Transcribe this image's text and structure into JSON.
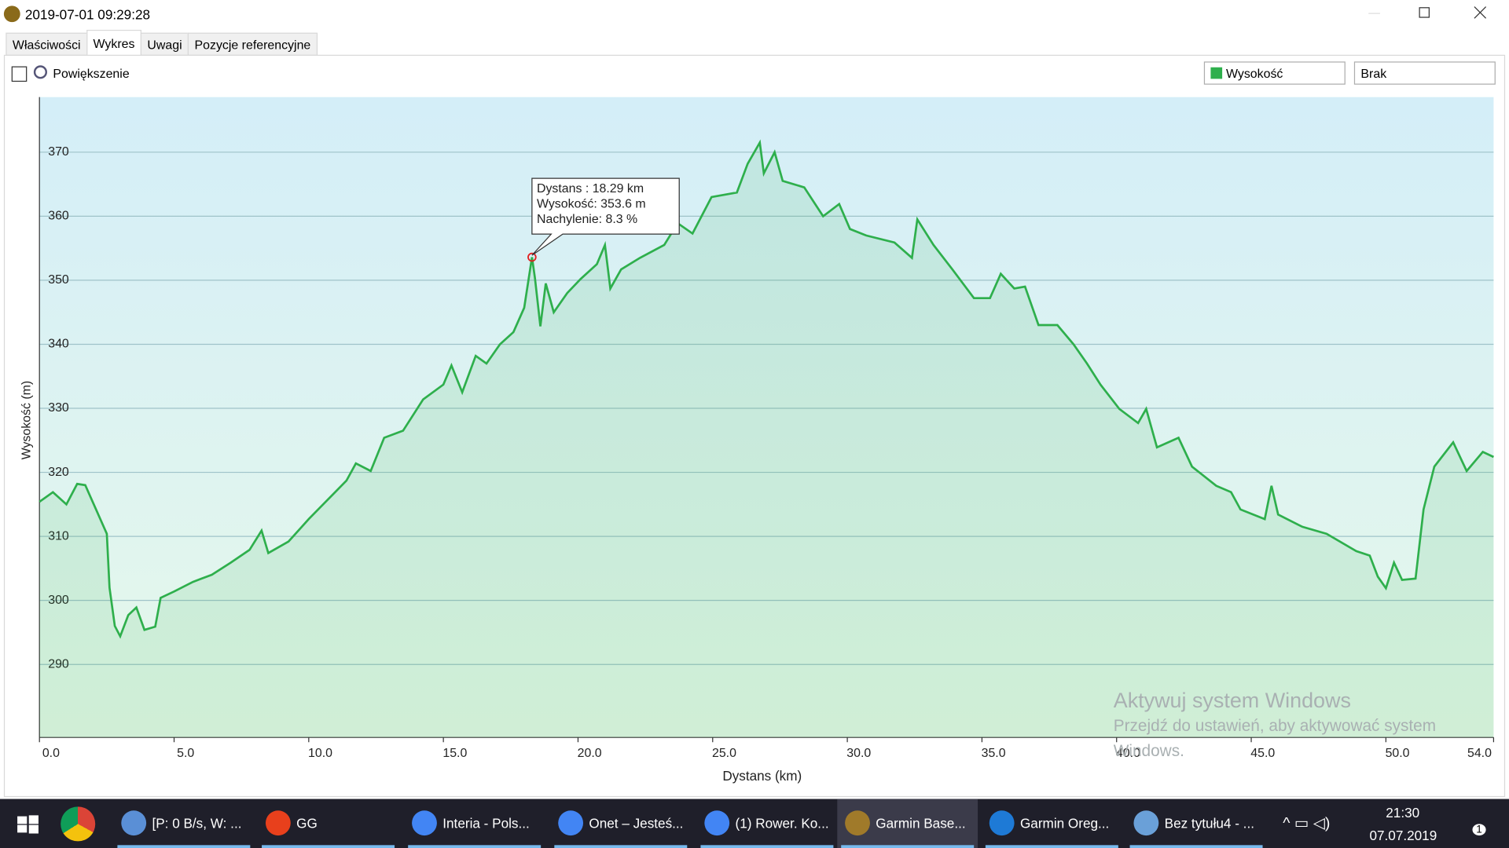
{
  "window": {
    "title": "2019-07-01 09:29:28",
    "tabs": [
      "Właściwości",
      "Wykres",
      "Uwagi",
      "Pozycje referencyjne"
    ],
    "zoom_label": "Powiększenie",
    "dropdown2": "Brak"
  },
  "chart_data": {
    "type": "line",
    "xlabel": "Dystans (km)",
    "ylabel": "Wysokość (m)",
    "x": [
      0,
      0.5,
      1,
      1.4,
      1.7,
      2.1,
      2.5,
      2.6,
      2.8,
      3.0,
      3.3,
      3.6,
      3.9,
      4.3,
      4.5,
      5,
      5.7,
      6.4,
      7.1,
      7.8,
      8.25,
      8.5,
      9.25,
      10,
      10.7,
      11.4,
      11.75,
      12.3,
      12.8,
      13.5,
      14.25,
      15,
      15.3,
      15.7,
      16.2,
      16.6,
      17.1,
      17.6,
      18,
      18.29,
      18.4,
      18.6,
      18.8,
      19.1,
      19.6,
      20.1,
      20.7,
      21,
      21.2,
      21.6,
      22.3,
      23.2,
      23.7,
      24.25,
      24.96,
      25.9,
      26.3,
      26.75,
      26.9,
      27.3,
      27.6,
      28.4,
      29.1,
      29.7,
      30.1,
      30.7,
      31.75,
      32.4,
      32.6,
      33.2,
      33.9,
      34.7,
      35.3,
      35.7,
      36.2,
      36.6,
      37.1,
      37.8,
      38.4,
      38.9,
      39.4,
      40.1,
      40.8,
      41.1,
      41.5,
      42.3,
      42.8,
      43.7,
      44.25,
      44.6,
      45.5,
      45.75,
      46,
      46.9,
      47.8,
      48.9,
      49.4,
      49.7,
      50,
      50.3,
      50.6,
      51.1,
      51.4,
      51.8,
      52.5,
      53,
      53.6,
      54
    ],
    "series": [
      {
        "name": "Wysokość",
        "color": "#2eaf4c",
        "values": [
          315.4,
          316.9,
          315,
          318.2,
          318,
          314.2,
          310.4,
          302,
          296,
          294.4,
          297.7,
          298.9,
          295.4,
          295.9,
          300.4,
          301.4,
          302.9,
          304,
          305.9,
          307.9,
          310.9,
          307.4,
          309.2,
          312.7,
          315.7,
          318.7,
          321.4,
          320.2,
          325.4,
          326.5,
          331.4,
          333.7,
          336.7,
          332.5,
          338.2,
          337,
          340,
          341.9,
          345.7,
          353.6,
          350.3,
          342.8,
          349.5,
          345,
          348,
          350.2,
          352.5,
          355.5,
          348.7,
          351.7,
          353.5,
          355.5,
          358.9,
          357.3,
          363,
          363.7,
          368.2,
          371.5,
          366.7,
          370,
          365.5,
          364.5,
          360,
          361.9,
          358,
          357,
          355.9,
          353.5,
          359.5,
          355.5,
          351.7,
          347.2,
          347.2,
          351,
          348.7,
          349,
          343,
          343,
          340,
          337,
          333.7,
          329.9,
          327.7,
          329.9,
          323.9,
          325.4,
          320.9,
          317.9,
          316.9,
          314.2,
          312.7,
          317.9,
          313.4,
          311.5,
          310.4,
          307.7,
          307,
          303.7,
          301.9,
          305.9,
          303.2,
          303.4,
          314.2,
          320.9,
          324.7,
          320.2,
          323.2,
          322.4
        ]
      }
    ],
    "xlim": [
      0,
      54
    ],
    "ylim": [
      278.6,
      378.6
    ],
    "xticks": [
      {
        "value": 0,
        "label": "0.0"
      },
      {
        "value": 5,
        "label": "5.0"
      },
      {
        "value": 10,
        "label": "10.0"
      },
      {
        "value": 15,
        "label": "15.0"
      },
      {
        "value": 20,
        "label": "20.0"
      },
      {
        "value": 25,
        "label": "25.0"
      },
      {
        "value": 30,
        "label": "30.0"
      },
      {
        "value": 35,
        "label": "35.0"
      },
      {
        "value": 40,
        "label": "40.0"
      },
      {
        "value": 45,
        "label": "45.0"
      },
      {
        "value": 50,
        "label": "50.0"
      },
      {
        "value": 54,
        "label": "54.0"
      }
    ],
    "yticks": [
      290,
      300,
      310,
      320,
      330,
      340,
      350,
      360,
      370
    ],
    "grid": true,
    "marker": {
      "x": 18.29,
      "y": 353.6
    },
    "tooltip": [
      "Dystans : 18.29 km",
      "Wysokość: 353.6 m",
      "Nachylenie: 8.3 %"
    ]
  },
  "watermark": [
    "Aktywuj system Windows",
    "Przejdź do ustawień, aby aktywować system",
    "Windows."
  ],
  "taskbar": {
    "items": [
      "[P: 0 B/s, W: ...",
      "GG",
      "Interia - Pols...",
      "Onet – Jesteś...",
      "(1) Rower. Ko...",
      "Garmin Base...",
      "Garmin Oreg...",
      "Bez tytułu4 - ..."
    ],
    "time": "21:30",
    "date": "07.07.2019",
    "notifications": "1"
  }
}
